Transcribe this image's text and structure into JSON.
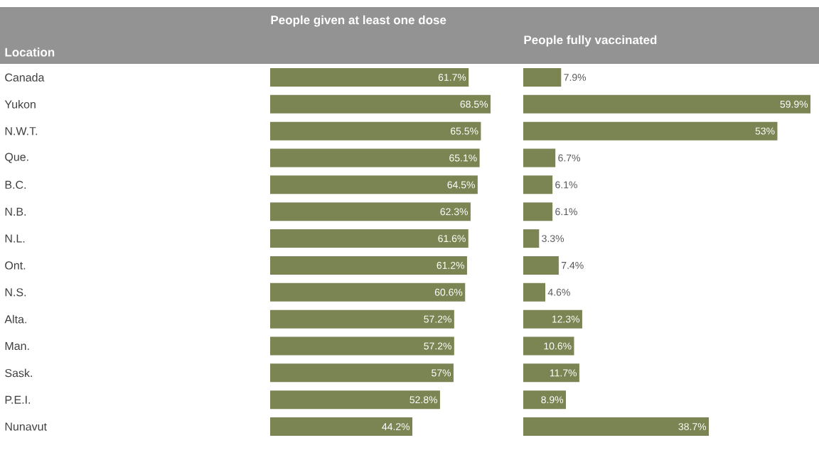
{
  "chart_data": [
    {
      "type": "bar",
      "orientation": "horizontal",
      "title": "People given at least one dose",
      "ylabel": "Location",
      "tick_labels": "y",
      "color": "#7b8553",
      "categories": [
        "Canada",
        "Yukon",
        "N.W.T.",
        "Que.",
        "B.C.",
        "N.B.",
        "N.L.",
        "Ont.",
        "N.S.",
        "Alta.",
        "Man.",
        "Sask.",
        "P.E.I.",
        "Nunavut"
      ],
      "values": [
        61.7,
        68.5,
        65.5,
        65.1,
        64.5,
        62.3,
        61.6,
        61.2,
        60.6,
        57.2,
        57.2,
        57,
        52.8,
        44.2
      ],
      "value_labels": [
        "61.7%",
        "68.5%",
        "65.5%",
        "65.1%",
        "64.5%",
        "62.3%",
        "61.6%",
        "61.2%",
        "60.6%",
        "57.2%",
        "57.2%",
        "57%",
        "52.8%",
        "44.2%"
      ]
    },
    {
      "type": "bar",
      "orientation": "horizontal",
      "title": "People fully vaccinated",
      "tick_labels": false,
      "color": "#7b8553",
      "categories": [
        null,
        null,
        null,
        null,
        null,
        null,
        null,
        null,
        null,
        null,
        null,
        null,
        null,
        null
      ],
      "values": [
        7.9,
        59.9,
        53,
        6.7,
        6.1,
        6.1,
        3.3,
        7.4,
        4.6,
        12.3,
        10.6,
        11.7,
        8.9,
        38.7
      ],
      "value_labels": [
        "7.9%",
        "59.9%",
        "53%",
        "6.7%",
        "6.1%",
        "6.1%",
        "3.3%",
        "7.4%",
        "4.6%",
        "12.3%",
        "10.6%",
        "11.7%",
        "8.9%",
        "38.7%"
      ]
    }
  ]
}
